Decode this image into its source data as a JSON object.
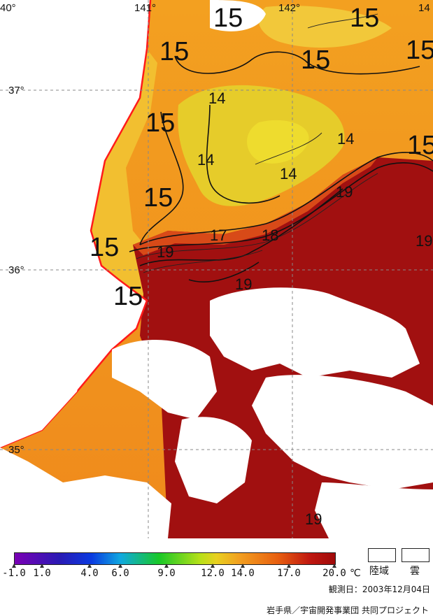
{
  "map": {
    "lon_labels": [
      "40°",
      "141°",
      "142°",
      "14"
    ],
    "lat_labels": [
      "37°",
      "36°",
      "35°"
    ],
    "isotherm_labels": [
      {
        "text": "15",
        "size": "big"
      },
      {
        "text": "15",
        "size": "big"
      },
      {
        "text": "15",
        "size": "big"
      },
      {
        "text": "15",
        "size": "big"
      },
      {
        "text": "15",
        "size": "big"
      },
      {
        "text": "15",
        "size": "big"
      },
      {
        "text": "15",
        "size": "big"
      },
      {
        "text": "15",
        "size": "big"
      },
      {
        "text": "15",
        "size": "big"
      },
      {
        "text": "15",
        "size": "big"
      },
      {
        "text": "14",
        "size": "small"
      },
      {
        "text": "14",
        "size": "small"
      },
      {
        "text": "14",
        "size": "small"
      },
      {
        "text": "14",
        "size": "small"
      },
      {
        "text": "19",
        "size": "small"
      },
      {
        "text": "17",
        "size": "small"
      },
      {
        "text": "18",
        "size": "small"
      },
      {
        "text": "19",
        "size": "small"
      },
      {
        "text": "19",
        "size": "small"
      },
      {
        "text": "19",
        "size": "small"
      },
      {
        "text": "19",
        "size": "small"
      }
    ],
    "colors": {
      "land": "#ffffff",
      "cloud": "#ffffff",
      "coast": "#ff1a1a",
      "sst_14": "#e8d020",
      "sst_15": "#f2a020",
      "sst_16": "#ef7a18",
      "sst_19": "#a01010"
    }
  },
  "legend": {
    "ticks": [
      "-1.0",
      "1.0",
      "4.0",
      "6.0",
      "9.0",
      "12.0",
      "14.0",
      "17.0",
      "20.0"
    ],
    "unit": "℃",
    "land_label": "陸域",
    "cloud_label": "雲",
    "observation_date": "観測日：2003年12月04日",
    "credit": "岩手県／宇宙開発事業団 共同プロジェクト"
  }
}
